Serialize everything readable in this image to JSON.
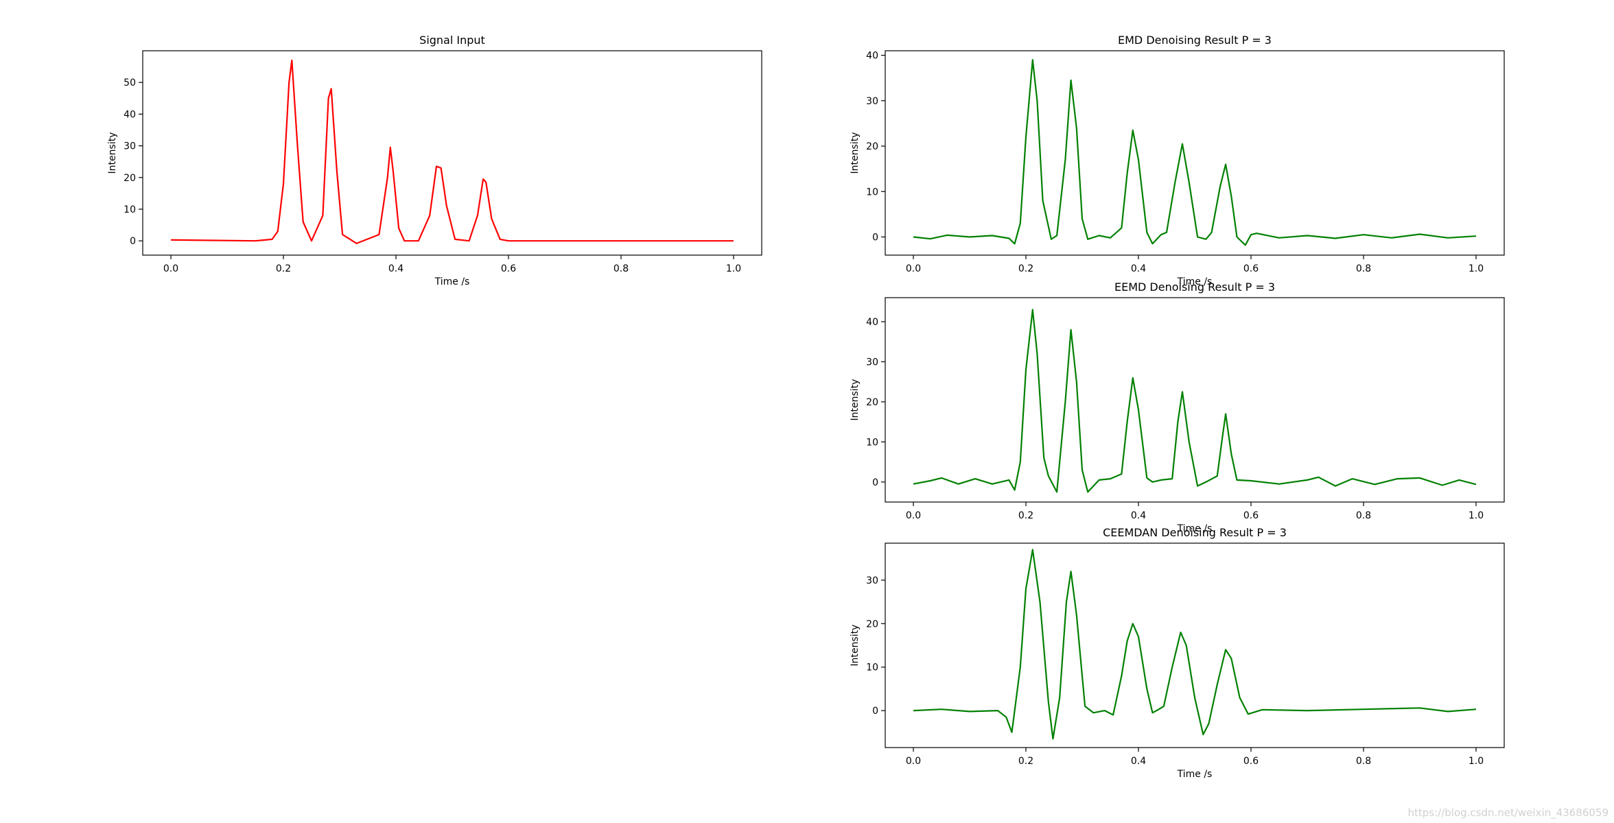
{
  "watermark": "https://blog.csdn.net/weixin_43686059",
  "chart_data": [
    {
      "type": "line",
      "title": "Signal Input",
      "xlabel": "Time /s",
      "ylabel": "Intensity",
      "xlim": [
        -0.05,
        1.05
      ],
      "ylim": [
        -4.5,
        60
      ],
      "xticks": [
        0.0,
        0.2,
        0.4,
        0.6,
        0.8,
        1.0
      ],
      "xtick_labels": [
        "0.0",
        "0.2",
        "0.4",
        "0.6",
        "0.8",
        "1.0"
      ],
      "yticks": [
        0,
        10,
        20,
        30,
        40,
        50
      ],
      "ytick_labels": [
        "0",
        "10",
        "20",
        "30",
        "40",
        "50"
      ],
      "color": "#ff0000",
      "grid": false,
      "series": [
        {
          "x": [
            0.0,
            0.15,
            0.18,
            0.19,
            0.2,
            0.21,
            0.215,
            0.225,
            0.235,
            0.25,
            0.27,
            0.28,
            0.285,
            0.295,
            0.305,
            0.33,
            0.37,
            0.385,
            0.39,
            0.395,
            0.405,
            0.415,
            0.44,
            0.46,
            0.472,
            0.48,
            0.49,
            0.505,
            0.53,
            0.545,
            0.555,
            0.56,
            0.57,
            0.585,
            0.6,
            0.8,
            1.0
          ],
          "y": [
            0.3,
            0.0,
            0.5,
            3.0,
            18.0,
            50.0,
            57.0,
            30.0,
            6.0,
            0.0,
            8.0,
            45.0,
            48.0,
            22.0,
            2.0,
            -0.8,
            2.0,
            20.0,
            29.5,
            22.0,
            4.0,
            0.0,
            0.0,
            8.0,
            23.5,
            23.0,
            11.0,
            0.5,
            0.0,
            8.0,
            19.5,
            18.5,
            7.0,
            0.5,
            0.0,
            0.0,
            0.0
          ]
        }
      ]
    },
    {
      "type": "line",
      "title": "EMD Denoising Result P = 3",
      "xlabel": "Time /s",
      "ylabel": "Intensity",
      "xlim": [
        -0.05,
        1.05
      ],
      "ylim": [
        -4,
        41
      ],
      "xticks": [
        0.0,
        0.2,
        0.4,
        0.6,
        0.8,
        1.0
      ],
      "xtick_labels": [
        "0.0",
        "0.2",
        "0.4",
        "0.6",
        "0.8",
        "1.0"
      ],
      "yticks": [
        0,
        10,
        20,
        30,
        40
      ],
      "ytick_labels": [
        "0",
        "10",
        "20",
        "30",
        "40"
      ],
      "color": "#008000",
      "grid": false,
      "series": [
        {
          "x": [
            0.0,
            0.03,
            0.06,
            0.1,
            0.14,
            0.17,
            0.18,
            0.19,
            0.2,
            0.212,
            0.22,
            0.23,
            0.245,
            0.255,
            0.27,
            0.28,
            0.29,
            0.3,
            0.31,
            0.33,
            0.35,
            0.37,
            0.38,
            0.39,
            0.4,
            0.415,
            0.425,
            0.44,
            0.45,
            0.465,
            0.478,
            0.49,
            0.505,
            0.52,
            0.53,
            0.545,
            0.555,
            0.565,
            0.575,
            0.59,
            0.6,
            0.61,
            0.65,
            0.7,
            0.75,
            0.8,
            0.85,
            0.9,
            0.95,
            1.0
          ],
          "y": [
            0.0,
            -0.4,
            0.4,
            0.0,
            0.3,
            -0.3,
            -1.5,
            3.0,
            22.0,
            39.0,
            30.0,
            8.0,
            -0.5,
            0.3,
            17.0,
            34.5,
            24.0,
            4.0,
            -0.5,
            0.3,
            -0.2,
            2.0,
            14.0,
            23.5,
            17.0,
            1.0,
            -1.5,
            0.5,
            1.0,
            12.0,
            20.5,
            12.0,
            0.0,
            -0.5,
            1.0,
            11.0,
            16.0,
            9.0,
            0.0,
            -1.8,
            0.5,
            0.8,
            -0.2,
            0.3,
            -0.3,
            0.5,
            -0.2,
            0.6,
            -0.2,
            0.2
          ]
        }
      ]
    },
    {
      "type": "line",
      "title": "EEMD Denoising Result P = 3",
      "xlabel": "Time /s",
      "ylabel": "Intensity",
      "xlim": [
        -0.05,
        1.05
      ],
      "ylim": [
        -5,
        46
      ],
      "xticks": [
        0.0,
        0.2,
        0.4,
        0.6,
        0.8,
        1.0
      ],
      "xtick_labels": [
        "0.0",
        "0.2",
        "0.4",
        "0.6",
        "0.8",
        "1.0"
      ],
      "yticks": [
        0,
        10,
        20,
        30,
        40
      ],
      "ytick_labels": [
        "0",
        "10",
        "20",
        "30",
        "40"
      ],
      "color": "#008000",
      "grid": false,
      "series": [
        {
          "x": [
            0.0,
            0.03,
            0.05,
            0.08,
            0.11,
            0.14,
            0.17,
            0.18,
            0.19,
            0.2,
            0.212,
            0.22,
            0.232,
            0.24,
            0.255,
            0.27,
            0.28,
            0.29,
            0.3,
            0.31,
            0.33,
            0.35,
            0.37,
            0.38,
            0.39,
            0.4,
            0.415,
            0.425,
            0.44,
            0.46,
            0.47,
            0.478,
            0.49,
            0.505,
            0.52,
            0.54,
            0.548,
            0.555,
            0.565,
            0.575,
            0.6,
            0.65,
            0.7,
            0.72,
            0.75,
            0.78,
            0.82,
            0.86,
            0.9,
            0.94,
            0.97,
            1.0
          ],
          "y": [
            -0.5,
            0.3,
            1.0,
            -0.5,
            0.8,
            -0.5,
            0.5,
            -2.0,
            5.0,
            28.0,
            43.0,
            32.0,
            6.0,
            1.5,
            -2.5,
            20.0,
            38.0,
            25.0,
            3.0,
            -2.5,
            0.5,
            0.8,
            2.0,
            15.0,
            26.0,
            18.0,
            1.0,
            0.0,
            0.5,
            0.8,
            15.0,
            22.5,
            10.0,
            -1.0,
            0.0,
            1.5,
            10.0,
            17.0,
            7.0,
            0.5,
            0.3,
            -0.5,
            0.5,
            1.2,
            -1.0,
            0.8,
            -0.6,
            0.8,
            1.0,
            -0.8,
            0.5,
            -0.6
          ]
        }
      ]
    },
    {
      "type": "line",
      "title": "CEEMDAN Denoising Result P = 3",
      "xlabel": "Time /s",
      "ylabel": "Intensity",
      "xlim": [
        -0.05,
        1.05
      ],
      "ylim": [
        -8.5,
        38.5
      ],
      "xticks": [
        0.0,
        0.2,
        0.4,
        0.6,
        0.8,
        1.0
      ],
      "xtick_labels": [
        "0.0",
        "0.2",
        "0.4",
        "0.6",
        "0.8",
        "1.0"
      ],
      "yticks": [
        0,
        10,
        20,
        30
      ],
      "ytick_labels": [
        "0",
        "10",
        "20",
        "30"
      ],
      "color": "#008000",
      "grid": false,
      "series": [
        {
          "x": [
            0.0,
            0.05,
            0.1,
            0.15,
            0.165,
            0.175,
            0.19,
            0.2,
            0.212,
            0.225,
            0.24,
            0.248,
            0.26,
            0.272,
            0.28,
            0.29,
            0.305,
            0.32,
            0.34,
            0.355,
            0.37,
            0.38,
            0.39,
            0.4,
            0.415,
            0.425,
            0.435,
            0.445,
            0.46,
            0.475,
            0.485,
            0.5,
            0.515,
            0.525,
            0.54,
            0.555,
            0.565,
            0.58,
            0.595,
            0.62,
            0.7,
            0.8,
            0.9,
            0.95,
            1.0
          ],
          "y": [
            0.0,
            0.3,
            -0.2,
            0.0,
            -1.5,
            -5.0,
            10.0,
            28.0,
            37.0,
            25.0,
            2.0,
            -6.5,
            3.0,
            25.0,
            32.0,
            22.0,
            1.0,
            -0.5,
            0.0,
            -1.0,
            8.0,
            16.0,
            20.0,
            17.0,
            5.0,
            -0.5,
            0.2,
            1.0,
            10.0,
            18.0,
            15.0,
            3.0,
            -5.5,
            -3.0,
            6.0,
            14.0,
            12.0,
            3.0,
            -0.8,
            0.2,
            0.0,
            0.3,
            0.6,
            -0.2,
            0.3
          ]
        }
      ]
    }
  ]
}
